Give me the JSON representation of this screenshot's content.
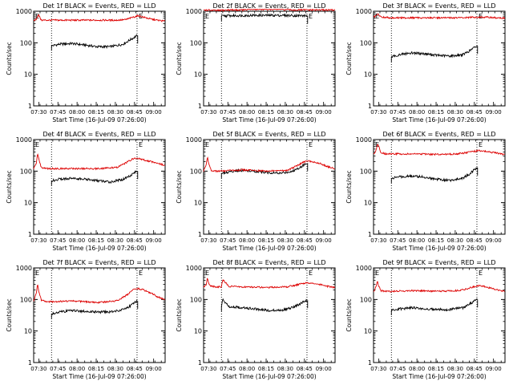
{
  "figure": {
    "xlabel": "Start Time (16-Jul-09 07:26:00)",
    "ylabel": "Counts/sec",
    "x_ticks": [
      "07:30",
      "07:45",
      "08:00",
      "08:15",
      "08:30",
      "08:45",
      "09:00"
    ],
    "y_ticks": [
      "1",
      "10",
      "100",
      "1000"
    ],
    "marker_left": "E",
    "marker_right": "E",
    "colors": {
      "events": "#000000",
      "lld": "#dd0000",
      "axis": "#000000"
    }
  },
  "chart_data": [
    {
      "type": "line",
      "title": "Det 1f BLACK = Events, RED = LLD",
      "xlabel": "Start Time (16-Jul-09 07:26:00)",
      "ylabel": "Counts/sec",
      "ylim": [
        1,
        1000
      ],
      "yscale": "log",
      "x_unit": "minutes after 07:26:00",
      "xlim": [
        0,
        103
      ],
      "vlines": [
        14,
        81
      ],
      "events_x": [
        14,
        81.5
      ],
      "lld_x": [
        0,
        103
      ],
      "series": [
        {
          "name": "Events",
          "color": "#000000",
          "x": [
            14,
            20,
            30,
            40,
            50,
            60,
            70,
            75,
            80,
            81.5
          ],
          "y": [
            80,
            90,
            95,
            85,
            75,
            75,
            90,
            120,
            160,
            170
          ]
        },
        {
          "name": "LLD",
          "color": "#dd0000",
          "x": [
            0,
            2,
            3,
            4,
            6,
            14,
            30,
            50,
            65,
            72,
            78,
            82,
            86,
            92,
            97,
            103
          ],
          "y": [
            500,
            560,
            700,
            750,
            520,
            520,
            520,
            520,
            520,
            540,
            650,
            720,
            650,
            560,
            520,
            480
          ]
        }
      ]
    },
    {
      "type": "line",
      "title": "Det 2f BLACK = Events, RED = LLD",
      "xlabel": "Start Time (16-Jul-09 07:26:00)",
      "ylabel": "Counts/sec",
      "ylim": [
        1,
        1000
      ],
      "yscale": "log",
      "x_unit": "minutes after 07:26:00",
      "xlim": [
        0,
        103
      ],
      "vlines": [
        14,
        81
      ],
      "events_x": [
        14,
        81.5
      ],
      "lld_x": [
        0,
        103
      ],
      "series": [
        {
          "name": "Events",
          "color": "#000000",
          "x": [
            14,
            20,
            30,
            40,
            45,
            50,
            60,
            70,
            80,
            81.5
          ],
          "y": [
            700,
            720,
            730,
            740,
            740,
            740,
            740,
            730,
            720,
            720
          ]
        },
        {
          "name": "LLD",
          "color": "#dd0000",
          "x": [
            0,
            10,
            20,
            30,
            40,
            50,
            60,
            70,
            80,
            90,
            103
          ],
          "y": [
            1100,
            1050,
            1100,
            1100,
            1150,
            1150,
            1150,
            1100,
            1100,
            1100,
            1100
          ]
        }
      ]
    },
    {
      "type": "line",
      "title": "Det 3f BLACK = Events, RED = LLD",
      "xlabel": "Start Time (16-Jul-09 07:26:00)",
      "ylabel": "Counts/sec",
      "ylim": [
        1,
        1000
      ],
      "yscale": "log",
      "x_unit": "minutes after 07:26:00",
      "xlim": [
        0,
        103
      ],
      "vlines": [
        14,
        81
      ],
      "events_x": [
        14,
        81.5
      ],
      "lld_x": [
        0,
        103
      ],
      "series": [
        {
          "name": "Events",
          "color": "#000000",
          "x": [
            14,
            20,
            30,
            40,
            50,
            60,
            70,
            75,
            80,
            81.5
          ],
          "y": [
            35,
            42,
            48,
            45,
            40,
            38,
            42,
            55,
            75,
            80
          ]
        },
        {
          "name": "LLD",
          "color": "#dd0000",
          "x": [
            0,
            2,
            3,
            4,
            6,
            14,
            30,
            50,
            70,
            80,
            90,
            103
          ],
          "y": [
            650,
            700,
            800,
            780,
            650,
            620,
            620,
            620,
            620,
            650,
            640,
            600
          ]
        }
      ]
    },
    {
      "type": "line",
      "title": "Det 4f BLACK = Events, RED = LLD",
      "xlabel": "Start Time (16-Jul-09 07:26:00)",
      "ylabel": "Counts/sec",
      "ylim": [
        1,
        1000
      ],
      "yscale": "log",
      "x_unit": "minutes after 07:26:00",
      "xlim": [
        0,
        103
      ],
      "vlines": [
        14,
        81
      ],
      "events_x": [
        14,
        81.5
      ],
      "lld_x": [
        0,
        103
      ],
      "series": [
        {
          "name": "Events",
          "color": "#000000",
          "x": [
            14,
            20,
            30,
            40,
            50,
            60,
            70,
            75,
            80,
            81.5
          ],
          "y": [
            50,
            55,
            60,
            55,
            50,
            45,
            55,
            70,
            95,
            100
          ]
        },
        {
          "name": "LLD",
          "color": "#dd0000",
          "x": [
            0,
            2,
            3,
            4,
            6,
            10,
            14,
            30,
            50,
            65,
            72,
            78,
            82,
            86,
            92,
            97,
            103
          ],
          "y": [
            120,
            170,
            350,
            250,
            130,
            120,
            120,
            120,
            120,
            130,
            180,
            250,
            250,
            230,
            200,
            180,
            150
          ]
        }
      ]
    },
    {
      "type": "line",
      "title": "Det 5f BLACK = Events, RED = LLD",
      "xlabel": "Start Time (16-Jul-09 07:26:00)",
      "ylabel": "Counts/sec",
      "ylim": [
        1,
        1000
      ],
      "yscale": "log",
      "x_unit": "minutes after 07:26:00",
      "xlim": [
        0,
        103
      ],
      "vlines": [
        14,
        81
      ],
      "events_x": [
        14,
        81.5
      ],
      "lld_x": [
        0,
        103
      ],
      "series": [
        {
          "name": "Events",
          "color": "#000000",
          "x": [
            14,
            20,
            30,
            40,
            50,
            60,
            70,
            75,
            80,
            81.5
          ],
          "y": [
            85,
            95,
            105,
            100,
            90,
            85,
            100,
            130,
            170,
            180
          ]
        },
        {
          "name": "LLD",
          "color": "#dd0000",
          "x": [
            0,
            2,
            3,
            4,
            6,
            10,
            14,
            30,
            50,
            65,
            72,
            78,
            82,
            86,
            92,
            97,
            103
          ],
          "y": [
            100,
            160,
            280,
            180,
            105,
            100,
            100,
            110,
            100,
            105,
            140,
            190,
            210,
            200,
            170,
            140,
            120
          ]
        }
      ]
    },
    {
      "type": "line",
      "title": "Det 6f BLACK = Events, RED = LLD",
      "xlabel": "Start Time (16-Jul-09 07:26:00)",
      "ylabel": "Counts/sec",
      "ylim": [
        1,
        1000
      ],
      "yscale": "log",
      "x_unit": "minutes after 07:26:00",
      "xlim": [
        0,
        103
      ],
      "vlines": [
        14,
        81
      ],
      "events_x": [
        14,
        81.5
      ],
      "lld_x": [
        0,
        103
      ],
      "series": [
        {
          "name": "Events",
          "color": "#000000",
          "x": [
            14,
            20,
            30,
            40,
            50,
            60,
            70,
            75,
            80,
            81.5
          ],
          "y": [
            60,
            65,
            70,
            65,
            55,
            50,
            60,
            80,
            120,
            130
          ]
        },
        {
          "name": "LLD",
          "color": "#dd0000",
          "x": [
            0,
            2,
            3,
            4,
            6,
            10,
            14,
            30,
            50,
            65,
            72,
            78,
            82,
            86,
            92,
            97,
            103
          ],
          "y": [
            350,
            450,
            700,
            600,
            380,
            350,
            350,
            350,
            340,
            350,
            380,
            420,
            440,
            430,
            400,
            370,
            330
          ]
        }
      ]
    },
    {
      "type": "line",
      "title": "Det 7f BLACK = Events, RED = LLD",
      "xlabel": "Start Time (16-Jul-09 07:26:00)",
      "ylabel": "Counts/sec",
      "ylim": [
        1,
        1000
      ],
      "yscale": "log",
      "x_unit": "minutes after 07:26:00",
      "xlim": [
        0,
        103
      ],
      "vlines": [
        14,
        81
      ],
      "events_x": [
        14,
        81.5
      ],
      "lld_x": [
        0,
        103
      ],
      "series": [
        {
          "name": "Events",
          "color": "#000000",
          "x": [
            14,
            20,
            30,
            40,
            50,
            60,
            70,
            75,
            80,
            81.5
          ],
          "y": [
            35,
            40,
            45,
            42,
            40,
            40,
            48,
            60,
            85,
            90
          ]
        },
        {
          "name": "LLD",
          "color": "#dd0000",
          "x": [
            0,
            2,
            3,
            4,
            6,
            10,
            14,
            30,
            50,
            65,
            72,
            78,
            82,
            86,
            92,
            97,
            103
          ],
          "y": [
            90,
            150,
            300,
            180,
            95,
            85,
            85,
            90,
            80,
            90,
            130,
            200,
            220,
            200,
            160,
            120,
            100
          ]
        }
      ]
    },
    {
      "type": "line",
      "title": "Det 8f BLACK = Events, RED = LLD",
      "xlabel": "Start Time (16-Jul-09 07:26:00)",
      "ylabel": "Counts/sec",
      "ylim": [
        1,
        1000
      ],
      "yscale": "log",
      "x_unit": "minutes after 07:26:00",
      "xlim": [
        0,
        103
      ],
      "vlines": [
        14,
        81
      ],
      "events_x": [
        14,
        81.5
      ],
      "lld_x": [
        0,
        103
      ],
      "series": [
        {
          "name": "Events",
          "color": "#000000",
          "x": [
            14,
            15,
            20,
            30,
            40,
            50,
            60,
            70,
            75,
            80,
            81.5
          ],
          "y": [
            60,
            100,
            60,
            55,
            50,
            45,
            45,
            55,
            70,
            90,
            95
          ]
        },
        {
          "name": "LLD",
          "color": "#dd0000",
          "x": [
            0,
            2,
            3,
            4,
            6,
            10,
            14,
            15,
            20,
            30,
            50,
            65,
            72,
            78,
            82,
            86,
            92,
            97,
            103
          ],
          "y": [
            250,
            300,
            500,
            320,
            260,
            250,
            250,
            420,
            260,
            250,
            240,
            250,
            280,
            320,
            340,
            320,
            290,
            260,
            240
          ]
        }
      ]
    },
    {
      "type": "line",
      "title": "Det 9f BLACK = Events, RED = LLD",
      "xlabel": "Start Time (16-Jul-09 07:26:00)",
      "ylabel": "Counts/sec",
      "ylim": [
        1,
        1000
      ],
      "yscale": "log",
      "x_unit": "minutes after 07:26:00",
      "xlim": [
        0,
        103
      ],
      "vlines": [
        14,
        81
      ],
      "events_x": [
        14,
        81.5
      ],
      "lld_x": [
        0,
        103
      ],
      "series": [
        {
          "name": "Events",
          "color": "#000000",
          "x": [
            14,
            20,
            30,
            40,
            50,
            60,
            70,
            75,
            80,
            81.5
          ],
          "y": [
            45,
            50,
            55,
            50,
            48,
            48,
            55,
            70,
            95,
            100
          ]
        },
        {
          "name": "LLD",
          "color": "#dd0000",
          "x": [
            0,
            2,
            3,
            4,
            6,
            10,
            14,
            30,
            50,
            65,
            72,
            78,
            82,
            86,
            92,
            97,
            103
          ],
          "y": [
            180,
            250,
            400,
            270,
            190,
            180,
            180,
            190,
            180,
            190,
            210,
            250,
            270,
            260,
            230,
            200,
            180
          ]
        }
      ]
    }
  ]
}
